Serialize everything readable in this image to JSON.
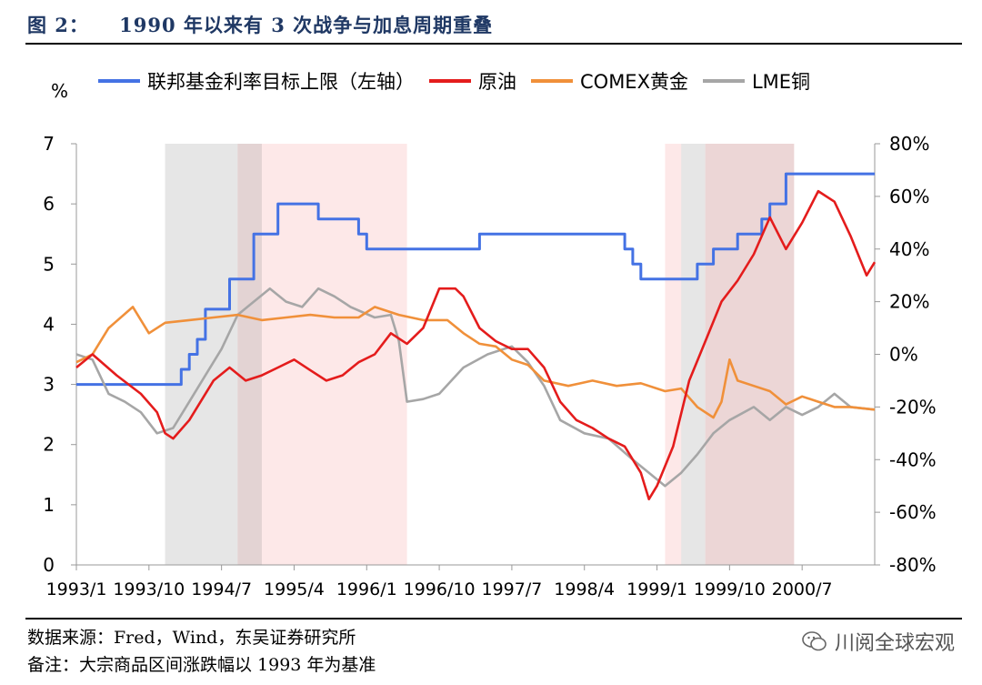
{
  "figure": {
    "title": "图 2：    1990 年以来有 3 次战争与加息周期重叠",
    "source": "数据来源：Fred，Wind，东吴证券研究所",
    "note": "备注：大宗商品区间涨跌幅以 1993 年为基准",
    "watermark": "川阅全球宏观",
    "watermark_icon": "wechat-icon"
  },
  "chart_data": {
    "type": "line",
    "unit_label": "%",
    "x_ticks": [
      "1993/1",
      "1993/10",
      "1994/7",
      "1995/4",
      "1996/1",
      "1996/10",
      "1997/7",
      "1998/4",
      "1999/1",
      "1999/10",
      "2000/7"
    ],
    "x_range": [
      "1993/1",
      "2001/4"
    ],
    "y_left": {
      "ticks": [
        "0",
        "1",
        "2",
        "3",
        "4",
        "5",
        "6",
        "7"
      ],
      "range": [
        0,
        7
      ]
    },
    "y_right": {
      "ticks": [
        "-80%",
        "-60%",
        "-40%",
        "-20%",
        "0%",
        "20%",
        "40%",
        "60%",
        "80%"
      ],
      "range": [
        -80,
        80
      ]
    },
    "grid": false,
    "legend_position": "top",
    "shaded_periods": [
      {
        "start": "1993/12",
        "end": "1994/12",
        "color": "#e6e6e6"
      },
      {
        "start": "1994/9",
        "end": "1996/6",
        "color": "#fde8e8"
      },
      {
        "start": "1994/9",
        "end": "1994/12",
        "color": "#e3d3d3"
      },
      {
        "start": "1999/2",
        "end": "2000/6",
        "color": "#fde8e8"
      },
      {
        "start": "1999/4",
        "end": "1999/7",
        "color": "#e6e6e6"
      },
      {
        "start": "1999/7",
        "end": "2000/6",
        "color": "#ecd6d6"
      }
    ],
    "series": [
      {
        "name": "联邦基金利率目标上限（左轴）",
        "axis": "left",
        "color": "#4472e4",
        "step": true,
        "points": [
          [
            "1993/1",
            3.0
          ],
          [
            "1994/2",
            3.25
          ],
          [
            "1994/3",
            3.5
          ],
          [
            "1994/4",
            3.75
          ],
          [
            "1994/5",
            4.25
          ],
          [
            "1994/8",
            4.75
          ],
          [
            "1994/11",
            5.5
          ],
          [
            "1995/2",
            6.0
          ],
          [
            "1995/7",
            5.75
          ],
          [
            "1995/12",
            5.5
          ],
          [
            "1996/1",
            5.25
          ],
          [
            "1997/3",
            5.5
          ],
          [
            "1998/9",
            5.25
          ],
          [
            "1998/10",
            5.0
          ],
          [
            "1998/11",
            4.75
          ],
          [
            "1999/6",
            5.0
          ],
          [
            "1999/8",
            5.25
          ],
          [
            "1999/11",
            5.5
          ],
          [
            "2000/2",
            5.75
          ],
          [
            "2000/3",
            6.0
          ],
          [
            "2000/5",
            6.5
          ],
          [
            "2001/4",
            6.5
          ]
        ]
      },
      {
        "name": "原油",
        "axis": "right",
        "color": "#e41c1c",
        "points": [
          [
            "1993/1",
            -5
          ],
          [
            "1993/3",
            0
          ],
          [
            "1993/6",
            -8
          ],
          [
            "1993/9",
            -15
          ],
          [
            "1993/11",
            -22
          ],
          [
            "1993/12",
            -30
          ],
          [
            "1994/1",
            -32
          ],
          [
            "1994/3",
            -25
          ],
          [
            "1994/6",
            -10
          ],
          [
            "1994/8",
            -5
          ],
          [
            "1994/10",
            -10
          ],
          [
            "1994/12",
            -8
          ],
          [
            "1995/2",
            -5
          ],
          [
            "1995/4",
            -2
          ],
          [
            "1995/6",
            -6
          ],
          [
            "1995/8",
            -10
          ],
          [
            "1995/10",
            -8
          ],
          [
            "1995/12",
            -3
          ],
          [
            "1996/2",
            0
          ],
          [
            "1996/4",
            8
          ],
          [
            "1996/6",
            4
          ],
          [
            "1996/8",
            10
          ],
          [
            "1996/10",
            25
          ],
          [
            "1996/12",
            25
          ],
          [
            "1997/1",
            22
          ],
          [
            "1997/3",
            10
          ],
          [
            "1997/5",
            5
          ],
          [
            "1997/7",
            2
          ],
          [
            "1997/9",
            2
          ],
          [
            "1997/11",
            -5
          ],
          [
            "1998/1",
            -18
          ],
          [
            "1998/3",
            -25
          ],
          [
            "1998/5",
            -28
          ],
          [
            "1998/7",
            -32
          ],
          [
            "1998/9",
            -35
          ],
          [
            "1998/11",
            -45
          ],
          [
            "1998/12",
            -55
          ],
          [
            "1999/1",
            -50
          ],
          [
            "1999/3",
            -35
          ],
          [
            "1999/5",
            -10
          ],
          [
            "1999/7",
            5
          ],
          [
            "1999/9",
            20
          ],
          [
            "1999/11",
            28
          ],
          [
            "2000/1",
            38
          ],
          [
            "2000/3",
            52
          ],
          [
            "2000/5",
            40
          ],
          [
            "2000/7",
            50
          ],
          [
            "2000/9",
            62
          ],
          [
            "2000/11",
            58
          ],
          [
            "2001/1",
            45
          ],
          [
            "2001/3",
            30
          ],
          [
            "2001/4",
            35
          ]
        ]
      },
      {
        "name": "COMEX黄金",
        "axis": "right",
        "color": "#f0903a",
        "points": [
          [
            "1993/1",
            -3
          ],
          [
            "1993/3",
            0
          ],
          [
            "1993/5",
            10
          ],
          [
            "1993/8",
            18
          ],
          [
            "1993/10",
            8
          ],
          [
            "1993/12",
            12
          ],
          [
            "1994/3",
            13
          ],
          [
            "1994/6",
            14
          ],
          [
            "1994/9",
            15
          ],
          [
            "1994/12",
            13
          ],
          [
            "1995/3",
            14
          ],
          [
            "1995/6",
            15
          ],
          [
            "1995/9",
            14
          ],
          [
            "1995/12",
            14
          ],
          [
            "1996/2",
            18
          ],
          [
            "1996/5",
            15
          ],
          [
            "1996/8",
            13
          ],
          [
            "1996/11",
            13
          ],
          [
            "1997/1",
            8
          ],
          [
            "1997/3",
            4
          ],
          [
            "1997/5",
            3
          ],
          [
            "1997/7",
            -2
          ],
          [
            "1997/9",
            -4
          ],
          [
            "1997/11",
            -10
          ],
          [
            "1998/2",
            -12
          ],
          [
            "1998/5",
            -10
          ],
          [
            "1998/8",
            -12
          ],
          [
            "1998/11",
            -11
          ],
          [
            "1999/2",
            -14
          ],
          [
            "1999/4",
            -13
          ],
          [
            "1999/6",
            -20
          ],
          [
            "1999/8",
            -24
          ],
          [
            "1999/9",
            -18
          ],
          [
            "1999/10",
            -2
          ],
          [
            "1999/11",
            -10
          ],
          [
            "2000/1",
            -12
          ],
          [
            "2000/3",
            -14
          ],
          [
            "2000/5",
            -19
          ],
          [
            "2000/7",
            -16
          ],
          [
            "2000/9",
            -18
          ],
          [
            "2000/11",
            -20
          ],
          [
            "2001/1",
            -20
          ],
          [
            "2001/4",
            -21
          ]
        ]
      },
      {
        "name": "LME铜",
        "axis": "right",
        "color": "#a6a6a6",
        "points": [
          [
            "1993/1",
            0
          ],
          [
            "1993/3",
            -2
          ],
          [
            "1993/5",
            -15
          ],
          [
            "1993/7",
            -18
          ],
          [
            "1993/9",
            -22
          ],
          [
            "1993/11",
            -30
          ],
          [
            "1994/1",
            -28
          ],
          [
            "1994/3",
            -18
          ],
          [
            "1994/5",
            -8
          ],
          [
            "1994/7",
            2
          ],
          [
            "1994/9",
            15
          ],
          [
            "1994/11",
            20
          ],
          [
            "1995/1",
            25
          ],
          [
            "1995/3",
            20
          ],
          [
            "1995/5",
            18
          ],
          [
            "1995/7",
            25
          ],
          [
            "1995/9",
            22
          ],
          [
            "1995/11",
            18
          ],
          [
            "1996/2",
            14
          ],
          [
            "1996/4",
            15
          ],
          [
            "1996/5",
            5
          ],
          [
            "1996/6",
            -18
          ],
          [
            "1996/8",
            -17
          ],
          [
            "1996/10",
            -15
          ],
          [
            "1997/1",
            -5
          ],
          [
            "1997/4",
            0
          ],
          [
            "1997/7",
            3
          ],
          [
            "1997/9",
            -3
          ],
          [
            "1997/11",
            -12
          ],
          [
            "1998/1",
            -25
          ],
          [
            "1998/4",
            -30
          ],
          [
            "1998/7",
            -32
          ],
          [
            "1998/10",
            -40
          ],
          [
            "1998/12",
            -45
          ],
          [
            "1999/2",
            -50
          ],
          [
            "1999/4",
            -45
          ],
          [
            "1999/6",
            -38
          ],
          [
            "1999/8",
            -30
          ],
          [
            "1999/10",
            -25
          ],
          [
            "2000/1",
            -20
          ],
          [
            "2000/3",
            -25
          ],
          [
            "2000/5",
            -20
          ],
          [
            "2000/7",
            -23
          ],
          [
            "2000/9",
            -20
          ],
          [
            "2000/11",
            -15
          ],
          [
            "2001/1",
            -20
          ],
          [
            "2001/4",
            -21
          ]
        ]
      }
    ]
  }
}
